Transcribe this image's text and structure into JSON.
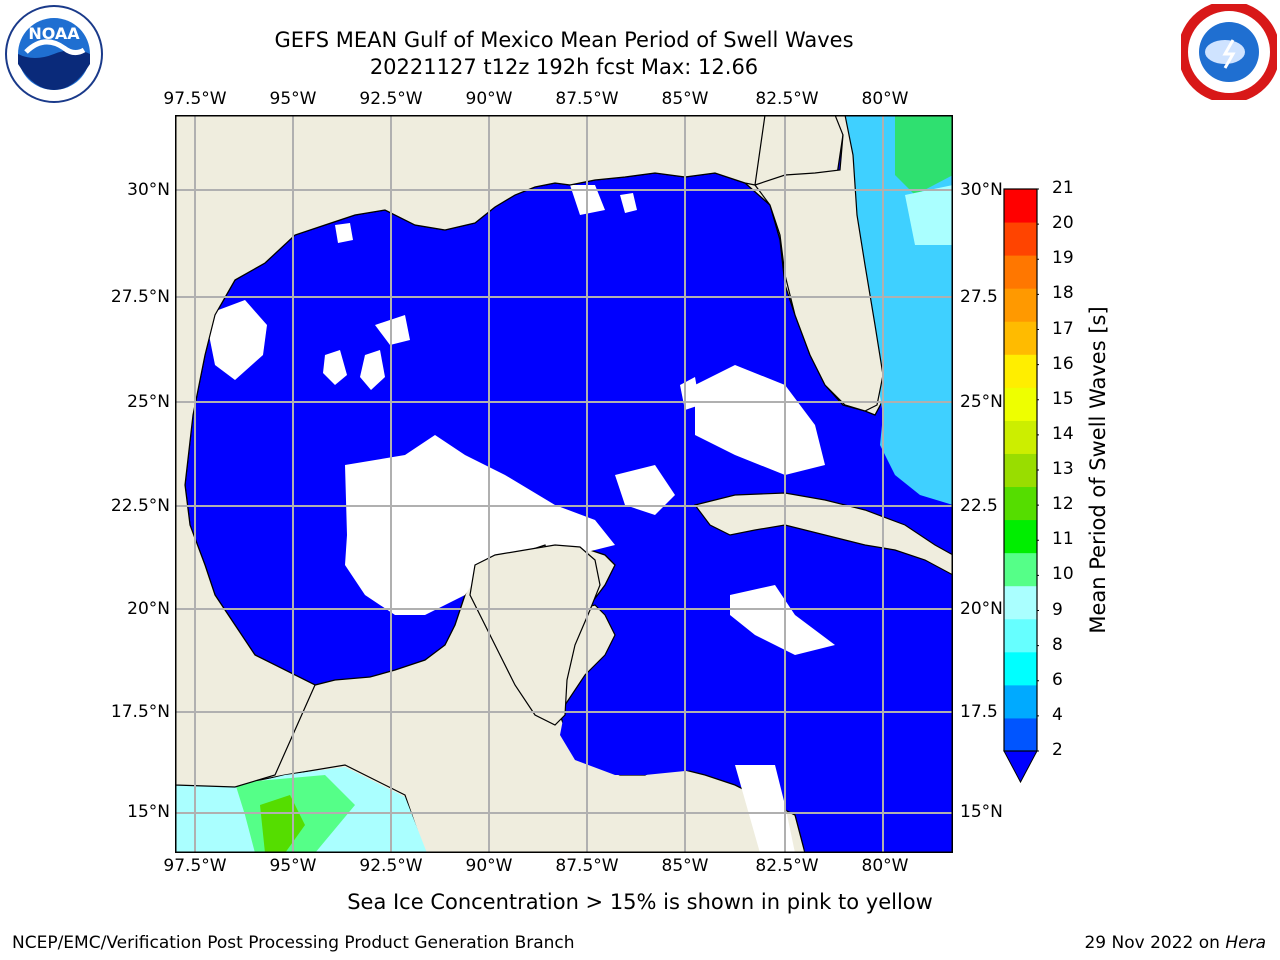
{
  "title": {
    "line1": "GEFS MEAN Gulf of Mexico Mean Period of Swell Waves",
    "line2": "20221127 t12z 192h fcst   Max: 12.66"
  },
  "longitude_labels": [
    "97.5°W",
    "95°W",
    "92.5°W",
    "90°W",
    "87.5°W",
    "85°W",
    "82.5°W",
    "80°W"
  ],
  "latitude_labels_left": [
    "30°N",
    "27.5°N",
    "25°N",
    "22.5°N",
    "20°N",
    "17.5°N",
    "15°N"
  ],
  "latitude_labels_right": [
    "30°N",
    "27.5",
    "25°N",
    "22.5",
    "20°N",
    "17.5",
    "15°N"
  ],
  "colorbar": {
    "title": "Mean Period of Swell Waves [s]",
    "ticks": [
      "2",
      "4",
      "6",
      "8",
      "9",
      "10",
      "11",
      "12",
      "13",
      "14",
      "15",
      "16",
      "17",
      "18",
      "19",
      "20",
      "21"
    ],
    "colors": [
      "#0055ff",
      "#00aaff",
      "#00ffff",
      "#66ffff",
      "#aaffff",
      "#55ff88",
      "#00ee00",
      "#55dd00",
      "#99dd00",
      "#ccee00",
      "#eeff00",
      "#ffee00",
      "#ffbb00",
      "#ff9900",
      "#ff7700",
      "#ff4400",
      "#ff0000"
    ],
    "extend": "min"
  },
  "map": {
    "extent": {
      "lon_min": -98.0,
      "lon_max": -78.2,
      "lat_min": 14.0,
      "lat_max": 31.8
    },
    "land_color": "#efedde",
    "ocean_dominant_color": "#0000ff",
    "gridline_color": "#b0b0b0"
  },
  "note": "Sea Ice Concentration > 15% is shown in pink to yellow",
  "footer": {
    "producer": "NCEP/EMC/Verification Post Processing Product Generation Branch",
    "date": "29 Nov 2022 on ",
    "host": "Hera"
  },
  "logos": {
    "left": {
      "icon": "noaa-logo",
      "text": "NOAA"
    },
    "right": {
      "icon": "nws-logo"
    }
  }
}
